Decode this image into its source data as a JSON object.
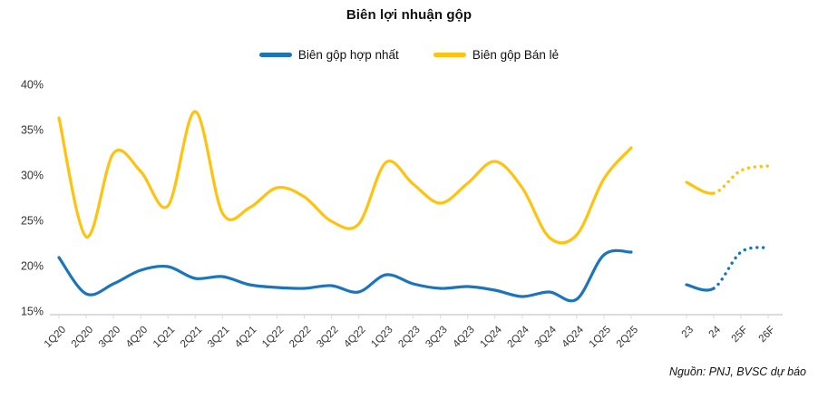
{
  "title": "Biên lợi nhuận gộp",
  "legend": [
    {
      "label": "Biên gộp hợp nhất",
      "color": "#1B75BC"
    },
    {
      "label": "Biên gộp Bán lẻ",
      "color": "#FFC20E"
    }
  ],
  "source_note": "Nguồn: PNJ, BVSC dự báo",
  "axis": {
    "line_color": "#DCDCDC",
    "tick_color": "#D9D9D9",
    "text_color": "#333333",
    "y_tick_labels": [
      "40%",
      "35%",
      "30%",
      "25%",
      "20%",
      "15%"
    ]
  },
  "chart_data": {
    "type": "line",
    "title": "Biên lợi nhuận gộp",
    "unit": "%",
    "ylim": [
      15,
      40
    ],
    "y_ticks": [
      40,
      35,
      30,
      25,
      20,
      15
    ],
    "grid": false,
    "legend_position": "top",
    "categories": [
      "1Q20",
      "2Q20",
      "3Q20",
      "4Q20",
      "1Q21",
      "2Q21",
      "3Q21",
      "4Q21",
      "1Q22",
      "2Q22",
      "3Q22",
      "4Q22",
      "1Q23",
      "2Q23",
      "3Q23",
      "4Q23",
      "1Q24",
      "2Q24",
      "3Q24",
      "4Q24",
      "1Q25",
      "2Q25"
    ],
    "annual_categories": [
      "23",
      "24",
      "25F",
      "26F"
    ],
    "annual_forecast_start_index": 1,
    "series": [
      {
        "name": "Biên gộp hợp nhất",
        "color": "#1B75BC",
        "values": [
          20.9,
          16.9,
          18.0,
          19.5,
          19.9,
          18.6,
          18.8,
          17.9,
          17.6,
          17.5,
          17.8,
          17.1,
          19.0,
          18.0,
          17.5,
          17.7,
          17.3,
          16.6,
          17.1,
          16.3,
          21.2,
          21.5
        ],
        "annual_values": [
          17.9,
          17.5,
          21.5,
          22.0
        ]
      },
      {
        "name": "Biên gộp Bán lẻ",
        "color": "#FFC20E",
        "values": [
          36.3,
          23.2,
          32.4,
          30.4,
          26.6,
          37.0,
          25.8,
          26.4,
          28.6,
          27.6,
          24.9,
          24.6,
          31.4,
          29.0,
          26.9,
          29.1,
          31.5,
          28.6,
          23.1,
          23.4,
          29.6,
          33.0
        ],
        "annual_values": [
          29.2,
          28.0,
          30.5,
          31.0
        ]
      }
    ]
  }
}
